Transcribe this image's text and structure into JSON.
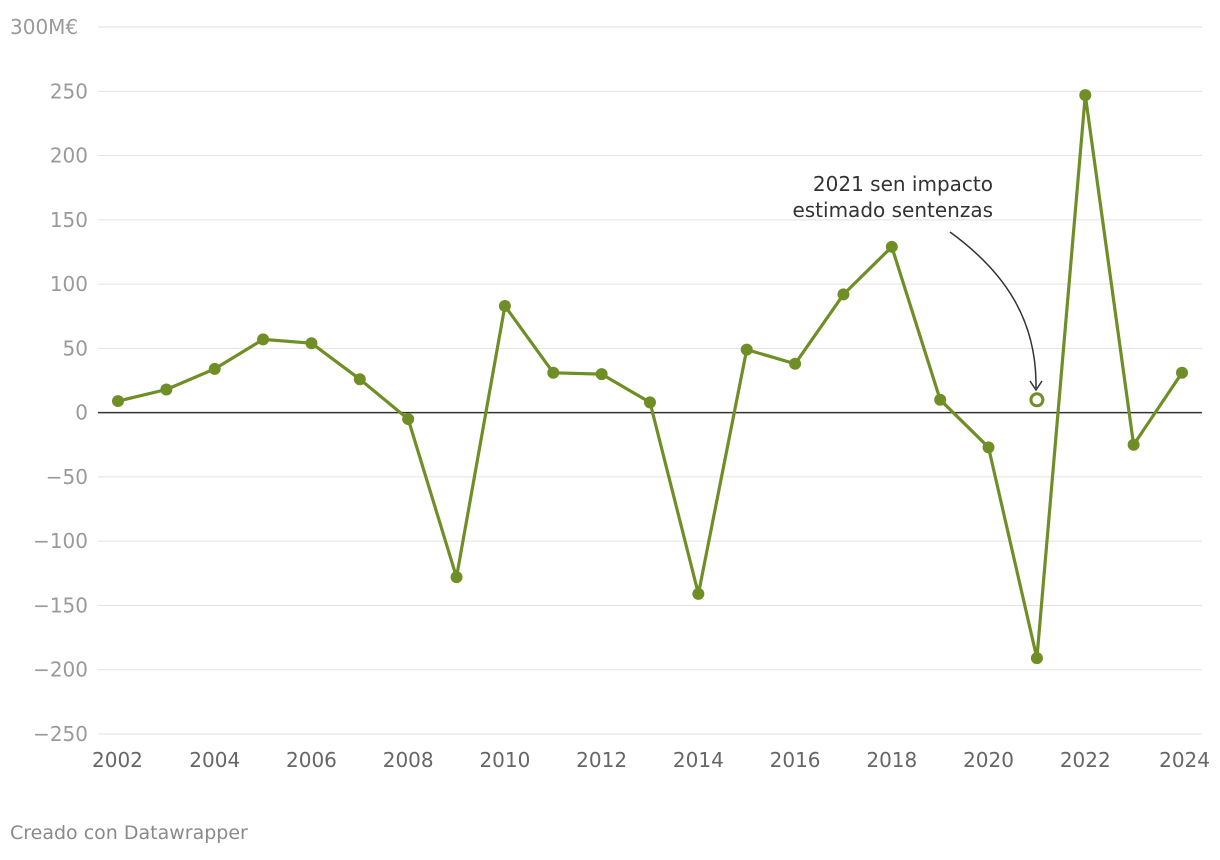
{
  "chart_data": {
    "type": "line",
    "x": [
      2002,
      2003,
      2004,
      2005,
      2006,
      2007,
      2008,
      2009,
      2010,
      2011,
      2012,
      2013,
      2014,
      2015,
      2016,
      2017,
      2018,
      2019,
      2020,
      2021,
      2022,
      2023,
      2024
    ],
    "series": [
      {
        "values": [
          9,
          18,
          34,
          57,
          54,
          26,
          -5,
          -128,
          83,
          31,
          30,
          8,
          -141,
          49,
          38,
          92,
          129,
          10,
          -27,
          -191,
          247,
          -25,
          31
        ]
      }
    ],
    "extra_point": {
      "x": 2021,
      "value": 10
    },
    "xlim": [
      2002,
      2024
    ],
    "ylim": [
      -250,
      300
    ],
    "xticks": [
      "2002",
      "2004",
      "2006",
      "2008",
      "2010",
      "2012",
      "2014",
      "2016",
      "2018",
      "2020",
      "2022",
      "2024"
    ],
    "yticks": [
      {
        "value": 300,
        "label": "300M€"
      },
      {
        "value": 250,
        "label": "250"
      },
      {
        "value": 200,
        "label": "200"
      },
      {
        "value": 150,
        "label": "150"
      },
      {
        "value": 100,
        "label": "100"
      },
      {
        "value": 50,
        "label": "50"
      },
      {
        "value": 0,
        "label": "0"
      },
      {
        "value": -50,
        "label": "−50"
      },
      {
        "value": -100,
        "label": "−100"
      },
      {
        "value": -150,
        "label": "−150"
      },
      {
        "value": -200,
        "label": "−200"
      },
      {
        "value": -250,
        "label": "−250"
      }
    ],
    "annotation": {
      "lines": [
        "2021 sen impacto",
        "estimado sentenzas"
      ]
    },
    "grid": true,
    "colors": {
      "line": "#6f8f26",
      "grid": "#e2e2e2",
      "zero": "#333333",
      "tick": "#9a9a9a",
      "xtick": "#666666",
      "annotation": "#333333"
    }
  },
  "footer": {
    "credit": "Creado con Datawrapper"
  }
}
